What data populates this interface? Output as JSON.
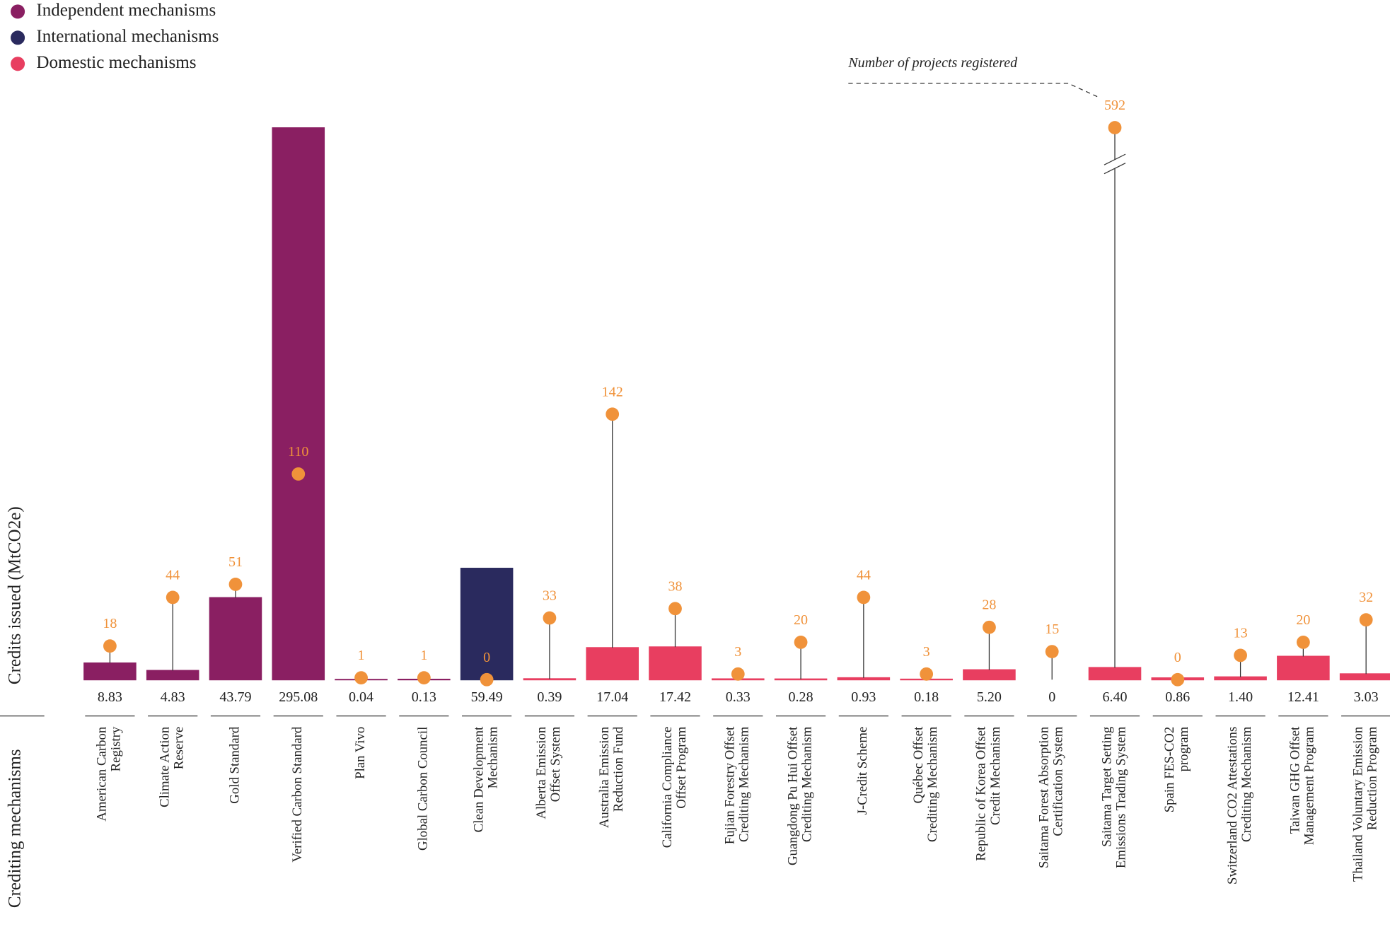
{
  "chart_data": {
    "type": "bar",
    "y_label": "Credits issued (MtCO2e)",
    "x_label": "Crediting mechanisms",
    "categories": [
      [
        "American Carbon",
        "Registry"
      ],
      [
        "Climate Action",
        "Reserve"
      ],
      [
        "Gold Standard"
      ],
      [
        "Verified Carbon Standard"
      ],
      [
        "Plan Vivo"
      ],
      [
        "Global Carbon Council"
      ],
      [
        "Clean Development",
        "Mechanism"
      ],
      [
        "Alberta Emission",
        "Offset System"
      ],
      [
        "Australia Emission",
        "Reduction Fund"
      ],
      [
        "California Compliance",
        "Offset Program"
      ],
      [
        "Fujian Forestry Offset",
        "Crediting Mechanism"
      ],
      [
        "Guangdong Pu Hui Offset",
        "Crediting Mechanism"
      ],
      [
        "J-Credit Scheme"
      ],
      [
        "Québec Offset",
        "Crediting Mechanism"
      ],
      [
        "Republic of Korea Offset",
        "Credit Mechanism"
      ],
      [
        "Saitama Forest Absorption",
        "Certification System"
      ],
      [
        "Saitama Target Setting",
        "Emissions Trading System"
      ],
      [
        "Spain FES-CO2",
        "program"
      ],
      [
        "Switzerland CO2 Attestations",
        "Crediting Mechanism"
      ],
      [
        "Taiwan GHG Offset",
        "Management Program"
      ],
      [
        "Thailand Voluntary Emission",
        "Reduction Program"
      ]
    ],
    "series": [
      {
        "name": "Independent mechanisms",
        "color": "#8a1f62",
        "values": [
          8.83,
          4.83,
          43.79,
          295.08,
          0.04,
          0.13,
          null,
          null,
          null,
          null,
          null,
          null,
          null,
          null,
          null,
          null,
          null,
          null,
          null,
          null,
          null
        ],
        "value_labels": [
          "8.83",
          "4.83",
          "43.79",
          "295.08",
          "0.04",
          "0.13",
          null,
          null,
          null,
          null,
          null,
          null,
          null,
          null,
          null,
          null,
          null,
          null,
          null,
          null,
          null
        ]
      },
      {
        "name": "International mechanisms",
        "color": "#2a2a5e",
        "values": [
          null,
          null,
          null,
          null,
          null,
          null,
          59.49,
          null,
          null,
          null,
          null,
          null,
          null,
          null,
          null,
          null,
          null,
          null,
          null,
          null,
          null
        ],
        "value_labels": [
          null,
          null,
          null,
          null,
          null,
          null,
          "59.49",
          null,
          null,
          null,
          null,
          null,
          null,
          null,
          null,
          null,
          null,
          null,
          null,
          null,
          null
        ]
      },
      {
        "name": "Domestic mechanisms",
        "color": "#e83e60",
        "values": [
          null,
          null,
          null,
          null,
          null,
          null,
          null,
          0.39,
          17.04,
          17.42,
          0.33,
          0.28,
          0.93,
          0.18,
          5.2,
          0,
          6.4,
          0.86,
          1.4,
          12.41,
          3.03
        ],
        "value_labels": [
          null,
          null,
          null,
          null,
          null,
          null,
          null,
          "0.39",
          "17.04",
          "17.42",
          "0.33",
          "0.28",
          "0.93",
          "0.18",
          "5.20",
          "0",
          "6.40",
          "0.86",
          "1.40",
          "12.41",
          "3.03"
        ]
      }
    ],
    "projects": {
      "name": "Number of projects registered",
      "color": "#f0923a",
      "values": [
        18,
        44,
        51,
        110,
        1,
        1,
        0,
        33,
        142,
        38,
        3,
        20,
        44,
        3,
        28,
        15,
        592,
        0,
        13,
        20,
        32
      ]
    }
  }
}
